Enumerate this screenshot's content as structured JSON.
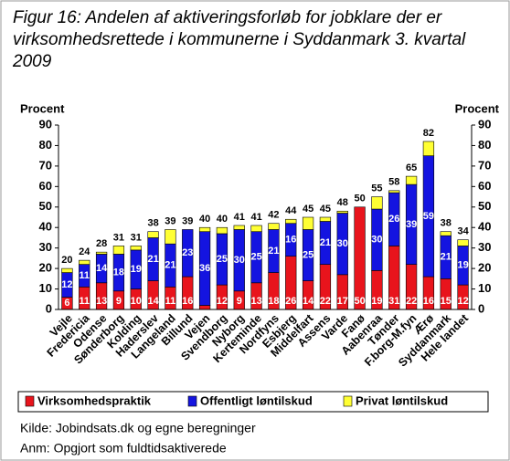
{
  "chart_data": {
    "type": "stacked-bar",
    "title": "Figur 16: Andelen af aktiveringsforløb for jobklare der er virksomhedsrettede i kommunerne i Syddanmark 3. kvartal 2009",
    "ylabel": "Procent",
    "y2label": "Procent",
    "categories": [
      "Vejle",
      "Fredericia",
      "Odense",
      "Sønderborg",
      "Kolding",
      "Haderslev",
      "Langeland",
      "Billund",
      "Vejen",
      "Svendborg",
      "Nyborg",
      "Kerteminde",
      "Nordfyns",
      "Esbjerg",
      "Middelfart",
      "Assens",
      "Varde",
      "Fanø",
      "Aabenraa",
      "Tønder",
      "F.borg-M.fyn",
      "Ærø",
      "Syddanmark",
      "Hele landet"
    ],
    "series": [
      {
        "name": "Virksomhedspraktik",
        "color": "#e8141c",
        "values": [
          6,
          11,
          13,
          9,
          10,
          14,
          11,
          16,
          2,
          12,
          9,
          13,
          18,
          26,
          14,
          22,
          17,
          50,
          19,
          31,
          22,
          16,
          15,
          12
        ]
      },
      {
        "name": "Offentligt løntilskud",
        "color": "#1414e0",
        "values": [
          12,
          11,
          14,
          18,
          19,
          21,
          21,
          23,
          36,
          25,
          30,
          25,
          21,
          16,
          25,
          21,
          30,
          0,
          30,
          26,
          39,
          59,
          21,
          19
        ]
      },
      {
        "name": "Privat løntilskud",
        "color": "#ffff33",
        "values": [
          2,
          2,
          1,
          4,
          2,
          3,
          7,
          0,
          2,
          3,
          2,
          3,
          3,
          2,
          6,
          2,
          1,
          0,
          6,
          1,
          4,
          7,
          2,
          3
        ]
      }
    ],
    "totals": [
      20,
      24,
      28,
      31,
      31,
      38,
      39,
      39,
      40,
      40,
      41,
      41,
      42,
      44,
      45,
      45,
      48,
      50,
      55,
      58,
      65,
      82,
      38,
      34
    ],
    "ylim": [
      0,
      90
    ],
    "yticks": [
      0,
      10,
      20,
      30,
      40,
      50,
      60,
      70,
      80,
      90
    ],
    "y2lim": [
      0,
      90
    ],
    "y2ticks": [
      0,
      10,
      20,
      30,
      40,
      50,
      60,
      70,
      80,
      90
    ],
    "notes": [
      "Kilde: Jobindsats.dk og egne beregninger",
      "Anm: Opgjort som fuldtidsaktiverede"
    ]
  }
}
